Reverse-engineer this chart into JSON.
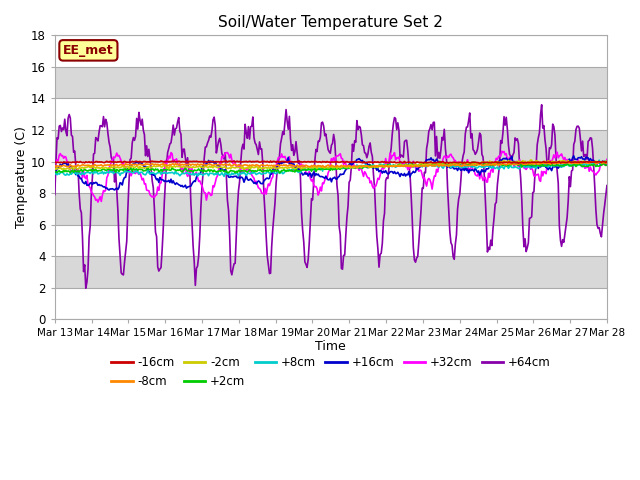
{
  "title": "Soil/Water Temperature Set 2",
  "xlabel": "Time",
  "ylabel": "Temperature (C)",
  "ylim": [
    0,
    18
  ],
  "yticks": [
    0,
    2,
    4,
    6,
    8,
    10,
    12,
    14,
    16,
    18
  ],
  "xtick_labels": [
    "Mar 13",
    "Mar 14",
    "Mar 15",
    "Mar 16",
    "Mar 17",
    "Mar 18",
    "Mar 19",
    "Mar 20",
    "Mar 21",
    "Mar 22",
    "Mar 23",
    "Mar 24",
    "Mar 25",
    "Mar 26",
    "Mar 27",
    "Mar 28"
  ],
  "bg_gray": "#d8d8d8",
  "bg_white": "#f0f0f0",
  "series_colors": {
    "-16cm": "#cc0000",
    "-8cm": "#ff8800",
    "-2cm": "#cccc00",
    "+2cm": "#00cc00",
    "+8cm": "#00cccc",
    "+16cm": "#0000cc",
    "+32cm": "#ff00ff",
    "+64cm": "#8800aa"
  },
  "watermark": "EE_met",
  "watermark_color": "#8B0000",
  "watermark_bg": "#ffff99",
  "n_points": 500
}
